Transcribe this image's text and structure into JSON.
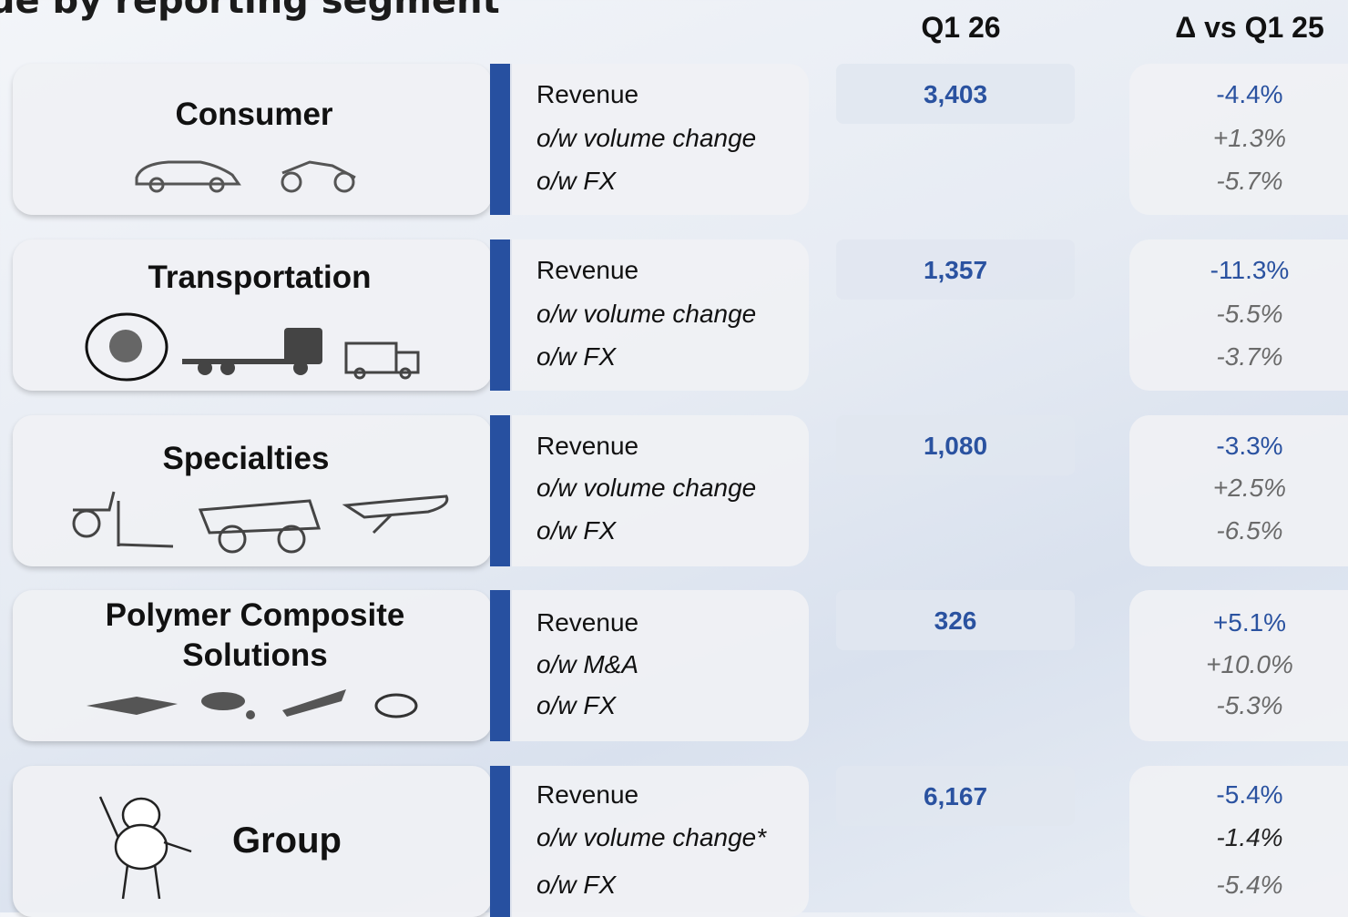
{
  "title": "ue by reporting segment",
  "columns": [
    "Q1 26",
    "Δ vs Q1 25"
  ],
  "segments": [
    {
      "name": "Consumer",
      "lines": [
        "Revenue",
        "o/w volume change",
        "o/w FX"
      ],
      "value": "3,403",
      "deltas": [
        "-4.4%",
        "+1.3%",
        "-5.7%"
      ]
    },
    {
      "name": "Transportation",
      "lines": [
        "Revenue",
        "o/w volume change",
        "o/w FX"
      ],
      "value": "1,357",
      "deltas": [
        "-11.3%",
        "-5.5%",
        "-3.7%"
      ]
    },
    {
      "name": "Specialties",
      "lines": [
        "Revenue",
        "o/w volume change",
        "o/w FX"
      ],
      "value": "1,080",
      "deltas": [
        "-3.3%",
        "+2.5%",
        "-6.5%"
      ]
    },
    {
      "name": "Polymer Composite Solutions",
      "lines": [
        "Revenue",
        "o/w M&A",
        "o/w FX"
      ],
      "value": "326",
      "deltas": [
        "+5.1%",
        "+10.0%",
        "-5.3%"
      ]
    },
    {
      "name": "Group",
      "lines": [
        "Revenue",
        "o/w volume change*",
        "o/w FX"
      ],
      "value": "6,167",
      "deltas": [
        "-5.4%",
        "-1.4%",
        "-5.4%"
      ]
    }
  ]
}
